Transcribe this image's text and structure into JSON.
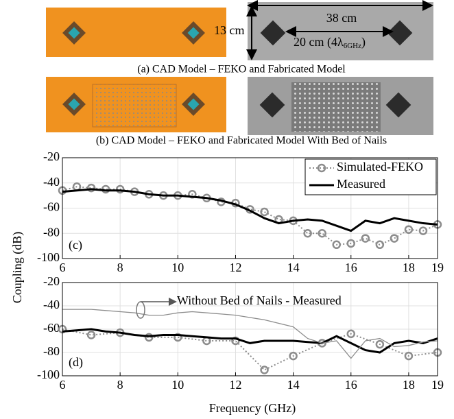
{
  "figure": {
    "caption_a": "(a) CAD Model – FEKO and Fabricated Model",
    "caption_b": "(b) CAD Model – FEKO and Fabricated Model With Bed of Nails",
    "dim_length": "38 cm",
    "dim_width": "13 cm",
    "dim_spacing": [
      "20 cm (4λ",
      "6GHz",
      ")"
    ]
  },
  "chart_data": [
    {
      "type": "line",
      "panel_label": "(c)",
      "y_label": "Coupling (dB)",
      "xlim": [
        6,
        19
      ],
      "xticks": [
        6,
        8,
        10,
        12,
        14,
        16,
        18,
        19
      ],
      "ylim": [
        -100,
        -20
      ],
      "yticks": [
        -100,
        -80,
        -60,
        -40,
        -20
      ],
      "grid": true,
      "legend": "upper right",
      "series": [
        {
          "name": "Simulated-FEKO",
          "color": "#8c8c8c",
          "style": "dotted",
          "marker": "circle",
          "x": [
            6,
            6.5,
            7,
            7.5,
            8,
            8.5,
            9,
            9.5,
            10,
            10.5,
            11,
            11.5,
            12,
            12.5,
            13,
            13.5,
            14,
            14.5,
            15,
            15.5,
            16,
            16.5,
            17,
            17.5,
            18,
            18.5,
            19
          ],
          "values": [
            -46,
            -43,
            -44,
            -45,
            -45,
            -47,
            -49,
            -50,
            -50,
            -49,
            -52,
            -55,
            -56,
            -61,
            -63,
            -69,
            -70,
            -80,
            -80,
            -89,
            -88,
            -84,
            -89,
            -84,
            -77,
            -78,
            -73
          ]
        },
        {
          "name": "Measured",
          "color": "#000000",
          "style": "solid",
          "marker": "none",
          "x": [
            6,
            6.5,
            7,
            7.5,
            8,
            8.5,
            9,
            9.5,
            10,
            10.5,
            11,
            11.5,
            12,
            12.5,
            13,
            13.5,
            14,
            14.5,
            15,
            15.5,
            16,
            16.5,
            17,
            17.5,
            18,
            18.5,
            19
          ],
          "values": [
            -47,
            -46,
            -45,
            -46,
            -46,
            -47,
            -49,
            -50,
            -50,
            -51,
            -52,
            -54,
            -57,
            -62,
            -68,
            -72,
            -70,
            -69,
            -70,
            -74,
            -78,
            -70,
            -72,
            -68,
            -70,
            -72,
            -73
          ]
        }
      ]
    },
    {
      "type": "line",
      "panel_label": "(d)",
      "x_label": "Frequency (GHz)",
      "xlim": [
        6,
        19
      ],
      "xticks": [
        6,
        8,
        10,
        12,
        14,
        16,
        18,
        19
      ],
      "ylim": [
        -100,
        -20
      ],
      "yticks": [
        -100,
        -80,
        -60,
        -40,
        -20
      ],
      "grid": true,
      "series": [
        {
          "name": "Simulated-FEKO",
          "color": "#8c8c8c",
          "style": "dotted",
          "marker": "circle",
          "x": [
            6,
            7,
            8,
            9,
            10,
            11,
            12,
            13,
            14,
            15,
            16,
            17,
            18,
            19
          ],
          "values": [
            -60,
            -65,
            -63,
            -67,
            -67,
            -70,
            -70,
            -95,
            -83,
            -72,
            -64,
            -73,
            -83,
            -80
          ]
        },
        {
          "name": "Measured",
          "color": "#000000",
          "style": "solid",
          "marker": "none",
          "x": [
            6,
            6.5,
            7,
            7.5,
            8,
            8.5,
            9,
            9.5,
            10,
            10.5,
            11,
            11.5,
            12,
            12.5,
            13,
            13.5,
            14,
            14.5,
            15,
            15.5,
            16,
            16.5,
            17,
            17.5,
            18,
            18.5,
            19
          ],
          "values": [
            -62,
            -61,
            -60,
            -62,
            -63,
            -65,
            -66,
            -65,
            -65,
            -66,
            -67,
            -68,
            -68,
            -72,
            -70,
            -70,
            -70,
            -71,
            -72,
            -66,
            -72,
            -78,
            -80,
            -72,
            -70,
            -72,
            -68
          ]
        },
        {
          "name": "Without Bed of Nails - Measured",
          "color": "#8c8c8c",
          "style": "thin",
          "marker": "none",
          "x": [
            6,
            6.5,
            7,
            7.5,
            8,
            8.5,
            9,
            9.5,
            10,
            10.5,
            11,
            11.5,
            12,
            12.5,
            13,
            13.5,
            14,
            14.5,
            15,
            15.5,
            16,
            16.5,
            17,
            17.5,
            18,
            18.5,
            19
          ],
          "values": [
            -43,
            -43,
            -43,
            -44,
            -45,
            -46,
            -48,
            -48,
            -46,
            -45,
            -46,
            -47,
            -48,
            -50,
            -52,
            -55,
            -58,
            -68,
            -72,
            -70,
            -85,
            -70,
            -68,
            -75,
            -74,
            -71,
            -70
          ]
        }
      ]
    }
  ]
}
